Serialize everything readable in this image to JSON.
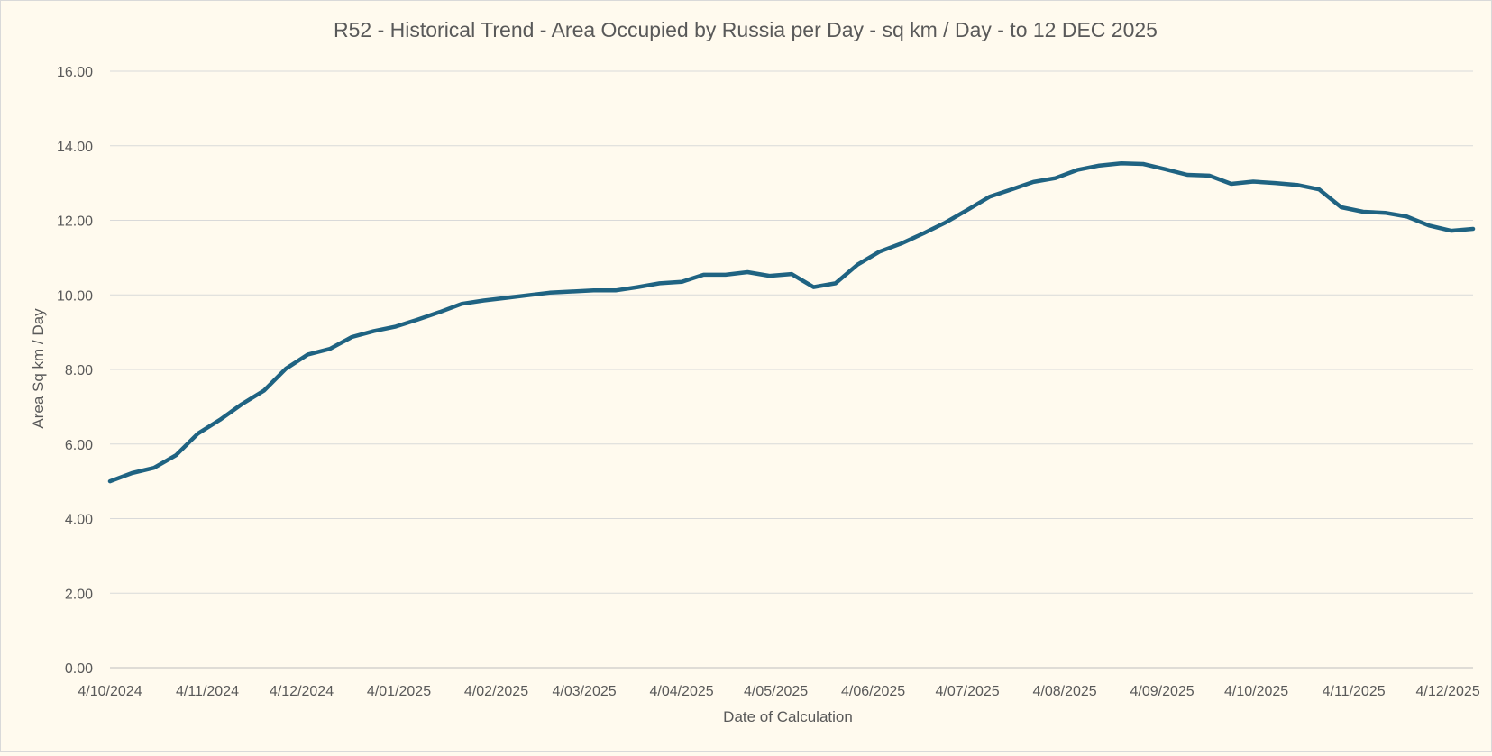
{
  "chart_data": {
    "type": "line",
    "title": "R52 - Historical Trend - Area Occupied by Russia per Day - sq km / Day - to 12 DEC 2025",
    "xlabel": "Date of Calculation",
    "ylabel": "Area Sq km / Day",
    "ylim": [
      0,
      16
    ],
    "yticks": [
      "0.00",
      "2.00",
      "4.00",
      "6.00",
      "8.00",
      "10.00",
      "12.00",
      "14.00",
      "16.00"
    ],
    "xticks": [
      {
        "label": "4/10/2024",
        "date": "2024-10-04"
      },
      {
        "label": "4/11/2024",
        "date": "2024-11-04"
      },
      {
        "label": "4/12/2024",
        "date": "2024-12-04"
      },
      {
        "label": "4/01/2025",
        "date": "2025-01-04"
      },
      {
        "label": "4/02/2025",
        "date": "2025-02-04"
      },
      {
        "label": "4/03/2025",
        "date": "2025-03-04"
      },
      {
        "label": "4/04/2025",
        "date": "2025-04-04"
      },
      {
        "label": "4/05/2025",
        "date": "2025-05-04"
      },
      {
        "label": "4/06/2025",
        "date": "2025-06-04"
      },
      {
        "label": "4/07/2025",
        "date": "2025-07-04"
      },
      {
        "label": "4/08/2025",
        "date": "2025-08-04"
      },
      {
        "label": "4/09/2025",
        "date": "2025-09-04"
      },
      {
        "label": "4/10/2025",
        "date": "2025-10-04"
      },
      {
        "label": "4/11/2025",
        "date": "2025-11-04"
      },
      {
        "label": "4/12/2025",
        "date": "2025-12-04"
      }
    ],
    "xlim": [
      "2024-10-04",
      "2025-12-12"
    ],
    "grid": true,
    "line_color": "#1f6382",
    "series": [
      {
        "name": "",
        "points": [
          [
            "2024-10-04",
            5.0
          ],
          [
            "2024-10-11",
            5.22
          ],
          [
            "2024-10-18",
            5.36
          ],
          [
            "2024-10-25",
            5.7
          ],
          [
            "2024-11-01",
            6.28
          ],
          [
            "2024-11-08",
            6.65
          ],
          [
            "2024-11-15",
            7.07
          ],
          [
            "2024-11-22",
            7.43
          ],
          [
            "2024-11-29",
            8.02
          ],
          [
            "2024-12-06",
            8.4
          ],
          [
            "2024-12-13",
            8.55
          ],
          [
            "2024-12-20",
            8.87
          ],
          [
            "2024-12-27",
            9.03
          ],
          [
            "2025-01-03",
            9.15
          ],
          [
            "2025-01-10",
            9.34
          ],
          [
            "2025-01-17",
            9.54
          ],
          [
            "2025-01-24",
            9.76
          ],
          [
            "2025-01-31",
            9.85
          ],
          [
            "2025-02-07",
            9.92
          ],
          [
            "2025-02-14",
            9.99
          ],
          [
            "2025-02-21",
            10.06
          ],
          [
            "2025-02-28",
            10.09
          ],
          [
            "2025-03-07",
            10.12
          ],
          [
            "2025-03-14",
            10.12
          ],
          [
            "2025-03-21",
            10.21
          ],
          [
            "2025-03-28",
            10.31
          ],
          [
            "2025-04-04",
            10.35
          ],
          [
            "2025-04-11",
            10.54
          ],
          [
            "2025-04-18",
            10.54
          ],
          [
            "2025-04-25",
            10.61
          ],
          [
            "2025-05-02",
            10.51
          ],
          [
            "2025-05-09",
            10.56
          ],
          [
            "2025-05-16",
            10.21
          ],
          [
            "2025-05-23",
            10.31
          ],
          [
            "2025-05-30",
            10.81
          ],
          [
            "2025-06-06",
            11.16
          ],
          [
            "2025-06-13",
            11.38
          ],
          [
            "2025-06-20",
            11.65
          ],
          [
            "2025-06-27",
            11.94
          ],
          [
            "2025-07-04",
            12.28
          ],
          [
            "2025-07-11",
            12.63
          ],
          [
            "2025-07-18",
            12.83
          ],
          [
            "2025-07-25",
            13.03
          ],
          [
            "2025-08-01",
            13.13
          ],
          [
            "2025-08-08",
            13.35
          ],
          [
            "2025-08-15",
            13.47
          ],
          [
            "2025-08-22",
            13.53
          ],
          [
            "2025-08-29",
            13.51
          ],
          [
            "2025-09-05",
            13.37
          ],
          [
            "2025-09-12",
            13.22
          ],
          [
            "2025-09-19",
            13.2
          ],
          [
            "2025-09-26",
            12.98
          ],
          [
            "2025-10-03",
            13.04
          ],
          [
            "2025-10-10",
            13.0
          ],
          [
            "2025-10-17",
            12.95
          ],
          [
            "2025-10-24",
            12.83
          ],
          [
            "2025-10-31",
            12.35
          ],
          [
            "2025-11-07",
            12.23
          ],
          [
            "2025-11-14",
            12.2
          ],
          [
            "2025-11-21",
            12.1
          ],
          [
            "2025-11-28",
            11.86
          ],
          [
            "2025-12-05",
            11.72
          ],
          [
            "2025-12-12",
            11.77
          ]
        ]
      }
    ]
  }
}
